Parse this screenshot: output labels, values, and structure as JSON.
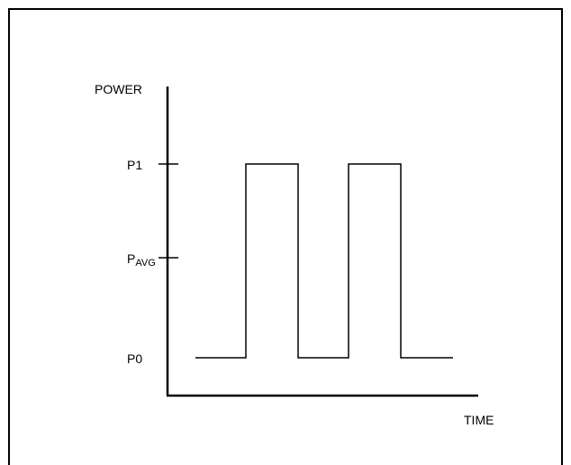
{
  "diagram": {
    "y_axis_label": "POWER",
    "x_axis_label": "TIME",
    "levels": [
      {
        "id": "p1",
        "label": "P1",
        "sub": ""
      },
      {
        "id": "pavg",
        "label": "P",
        "sub": "AVG"
      },
      {
        "id": "p0",
        "label": "P0",
        "sub": ""
      }
    ],
    "colors": {
      "line": "#000000",
      "background": "#ffffff"
    }
  }
}
